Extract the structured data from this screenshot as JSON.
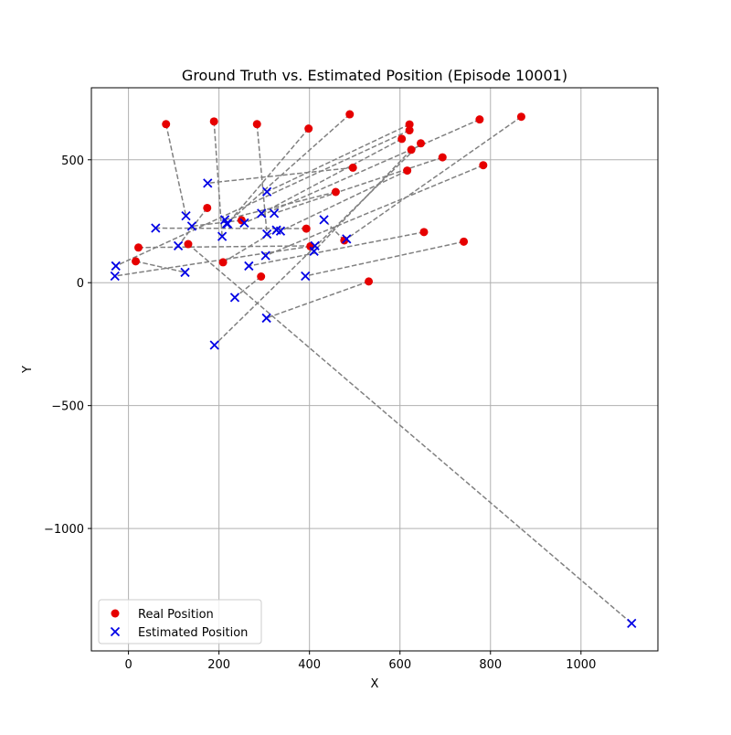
{
  "chart_data": {
    "type": "scatter",
    "title": "Ground Truth vs. Estimated Position (Episode 10001)",
    "xlabel": "X",
    "ylabel": "Y",
    "xlim": [
      -82,
      1170
    ],
    "ylim": [
      -1498,
      793
    ],
    "x_ticks": [
      0,
      200,
      400,
      600,
      800,
      1000
    ],
    "x_tick_labels": [
      "0",
      "200",
      "400",
      "600",
      "800",
      "1000"
    ],
    "y_ticks": [
      -1000,
      -500,
      0,
      500
    ],
    "y_tick_labels": [
      "−1000",
      "−500",
      "0",
      "500"
    ],
    "grid": true,
    "legend_position": "lower-left",
    "connector_color": "#808080",
    "series": [
      {
        "name": "Real Position",
        "marker": "circle",
        "color": "#e60000"
      },
      {
        "name": "Estimated Position",
        "marker": "x",
        "color": "#0000e6"
      }
    ],
    "pairs": [
      {
        "real": [
          83,
          645
        ],
        "est": [
          127,
          272
        ]
      },
      {
        "real": [
          189,
          656
        ],
        "est": [
          207,
          188
        ]
      },
      {
        "real": [
          284,
          645
        ],
        "est": [
          306,
          198
        ]
      },
      {
        "real": [
          398,
          627
        ],
        "est": [
          219,
          240
        ]
      },
      {
        "real": [
          489,
          685
        ],
        "est": [
          217,
          240
        ]
      },
      {
        "real": [
          621,
          644
        ],
        "est": [
          306,
          370
        ]
      },
      {
        "real": [
          621,
          620
        ],
        "est": [
          -28,
          68
        ]
      },
      {
        "real": [
          604,
          585
        ],
        "est": [
          294,
          282
        ]
      },
      {
        "real": [
          625,
          541
        ],
        "est": [
          410,
          128
        ]
      },
      {
        "real": [
          646,
          567
        ],
        "est": [
          190,
          -254
        ]
      },
      {
        "real": [
          776,
          664
        ],
        "est": [
          256,
          243
        ]
      },
      {
        "real": [
          868,
          675
        ],
        "est": [
          482,
          178
        ]
      },
      {
        "real": [
          694,
          510
        ],
        "est": [
          322,
          282
        ]
      },
      {
        "real": [
          784,
          478
        ],
        "est": [
          303,
          110
        ]
      },
      {
        "real": [
          616,
          456
        ],
        "est": [
          336,
          210
        ]
      },
      {
        "real": [
          496,
          468
        ],
        "est": [
          175,
          405
        ]
      },
      {
        "real": [
          458,
          369
        ],
        "est": [
          213,
          256
        ]
      },
      {
        "real": [
          174,
          304
        ],
        "est": [
          110,
          150
        ]
      },
      {
        "real": [
          250,
          254
        ],
        "est": [
          140,
          230
        ]
      },
      {
        "real": [
          393,
          220
        ],
        "est": [
          60,
          222
        ]
      },
      {
        "real": [
          402,
          148
        ],
        "est": [
          -30,
          27
        ]
      },
      {
        "real": [
          477,
          172
        ],
        "est": [
          432,
          256
        ]
      },
      {
        "real": [
          653,
          206
        ],
        "est": [
          266,
          68
        ]
      },
      {
        "real": [
          741,
          167
        ],
        "est": [
          391,
          27
        ]
      },
      {
        "real": [
          531,
          5
        ],
        "est": [
          305,
          -144
        ]
      },
      {
        "real": [
          209,
          83
        ],
        "est": [
          327,
          214
        ]
      },
      {
        "real": [
          293,
          25
        ],
        "est": [
          235,
          -60
        ]
      },
      {
        "real": [
          132,
          157
        ],
        "est": [
          1112,
          -1386
        ]
      },
      {
        "real": [
          22,
          143
        ],
        "est": [
          412,
          150
        ]
      },
      {
        "real": [
          16,
          87
        ],
        "est": [
          125,
          42
        ]
      }
    ]
  }
}
